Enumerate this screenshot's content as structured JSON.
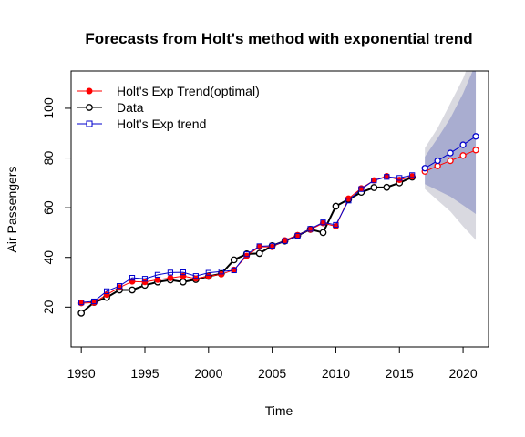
{
  "chart_data": {
    "type": "line",
    "title": "Forecasts from Holt's method with exponential trend",
    "xlabel": "Time",
    "ylabel": "Air Passengers",
    "xlim": [
      1989.2,
      2022.0
    ],
    "ylim": [
      4,
      115
    ],
    "xticks": [
      1990,
      1995,
      2000,
      2005,
      2010,
      2015,
      2020
    ],
    "yticks": [
      20,
      40,
      60,
      80,
      100
    ],
    "grid": false,
    "legend_position": "top-left",
    "colors": {
      "data": "#000000",
      "optimal": "#ff0000",
      "fitted": "#0000cc",
      "band80": "#a9add0",
      "band95": "#d9d9e0"
    },
    "legend": [
      {
        "label": "Holt's Exp Trend(optimal)",
        "series": "optimal"
      },
      {
        "label": "Data",
        "series": "data"
      },
      {
        "label": "Holt's Exp trend",
        "series": "fitted"
      }
    ],
    "series": {
      "data": {
        "name": "Data",
        "x": [
          1990,
          1991,
          1992,
          1993,
          1994,
          1995,
          1996,
          1997,
          1998,
          1999,
          2000,
          2001,
          2002,
          2003,
          2004,
          2005,
          2006,
          2007,
          2008,
          2009,
          2010,
          2011,
          2012,
          2013,
          2014,
          2015,
          2016
        ],
        "y": [
          17.6,
          21.9,
          23.9,
          26.9,
          26.9,
          28.8,
          30.1,
          30.9,
          30.1,
          31.1,
          32.4,
          33.4,
          39.0,
          41.4,
          41.6,
          44.7,
          46.6,
          48.8,
          51.3,
          50.0,
          60.6,
          63.4,
          66.2,
          68.1,
          68.2,
          70.0,
          72.3
        ]
      },
      "optimal": {
        "name": "Holt's Exp Trend(optimal)",
        "x": [
          1990,
          1991,
          1992,
          1993,
          1994,
          1995,
          1996,
          1997,
          1998,
          1999,
          2000,
          2001,
          2002,
          2003,
          2004,
          2005,
          2006,
          2007,
          2008,
          2009,
          2010,
          2011,
          2012,
          2013,
          2014,
          2015,
          2016
        ],
        "y": [
          21.6,
          21.8,
          25.0,
          27.9,
          30.3,
          30.1,
          31.0,
          31.7,
          32.5,
          31.5,
          32.4,
          33.2,
          35.0,
          40.6,
          44.3,
          44.2,
          46.9,
          49.0,
          51.2,
          53.8,
          52.5,
          63.7,
          67.8,
          71.0,
          72.7,
          71.2,
          72.6
        ]
      },
      "fitted": {
        "name": "Holt's Exp trend",
        "x": [
          1990,
          1991,
          1992,
          1993,
          1994,
          1995,
          1996,
          1997,
          1998,
          1999,
          2000,
          2001,
          2002,
          2003,
          2004,
          2005,
          2006,
          2007,
          2008,
          2009,
          2010,
          2011,
          2012,
          2013,
          2014,
          2015,
          2016
        ],
        "y": [
          21.9,
          22.3,
          26.4,
          28.5,
          31.8,
          31.4,
          33.0,
          33.9,
          34.0,
          32.5,
          33.8,
          34.3,
          34.8,
          41.3,
          44.5,
          44.7,
          46.6,
          48.7,
          51.5,
          54.1,
          53.1,
          62.9,
          67.5,
          71.0,
          72.4,
          72.0,
          73.1
        ]
      },
      "forecast_optimal": {
        "x": [
          2017,
          2018,
          2019,
          2020,
          2021
        ],
        "y": [
          74.6,
          76.8,
          78.9,
          81.0,
          83.2
        ]
      },
      "forecast_fitted": {
        "x": [
          2017,
          2018,
          2019,
          2020,
          2021
        ],
        "y": [
          75.9,
          78.9,
          82.0,
          85.3,
          88.7
        ]
      }
    },
    "intervals": {
      "x": [
        2017,
        2018,
        2019,
        2020,
        2021
      ],
      "lo95": [
        67.5,
        63.0,
        58.5,
        52.5,
        47.0
      ],
      "hi95": [
        84.0,
        92.0,
        102.0,
        112.0,
        125.0
      ],
      "lo80": [
        69.5,
        67.0,
        64.5,
        61.0,
        57.5
      ],
      "hi80": [
        80.5,
        88.0,
        96.0,
        106.0,
        118.0
      ]
    }
  }
}
